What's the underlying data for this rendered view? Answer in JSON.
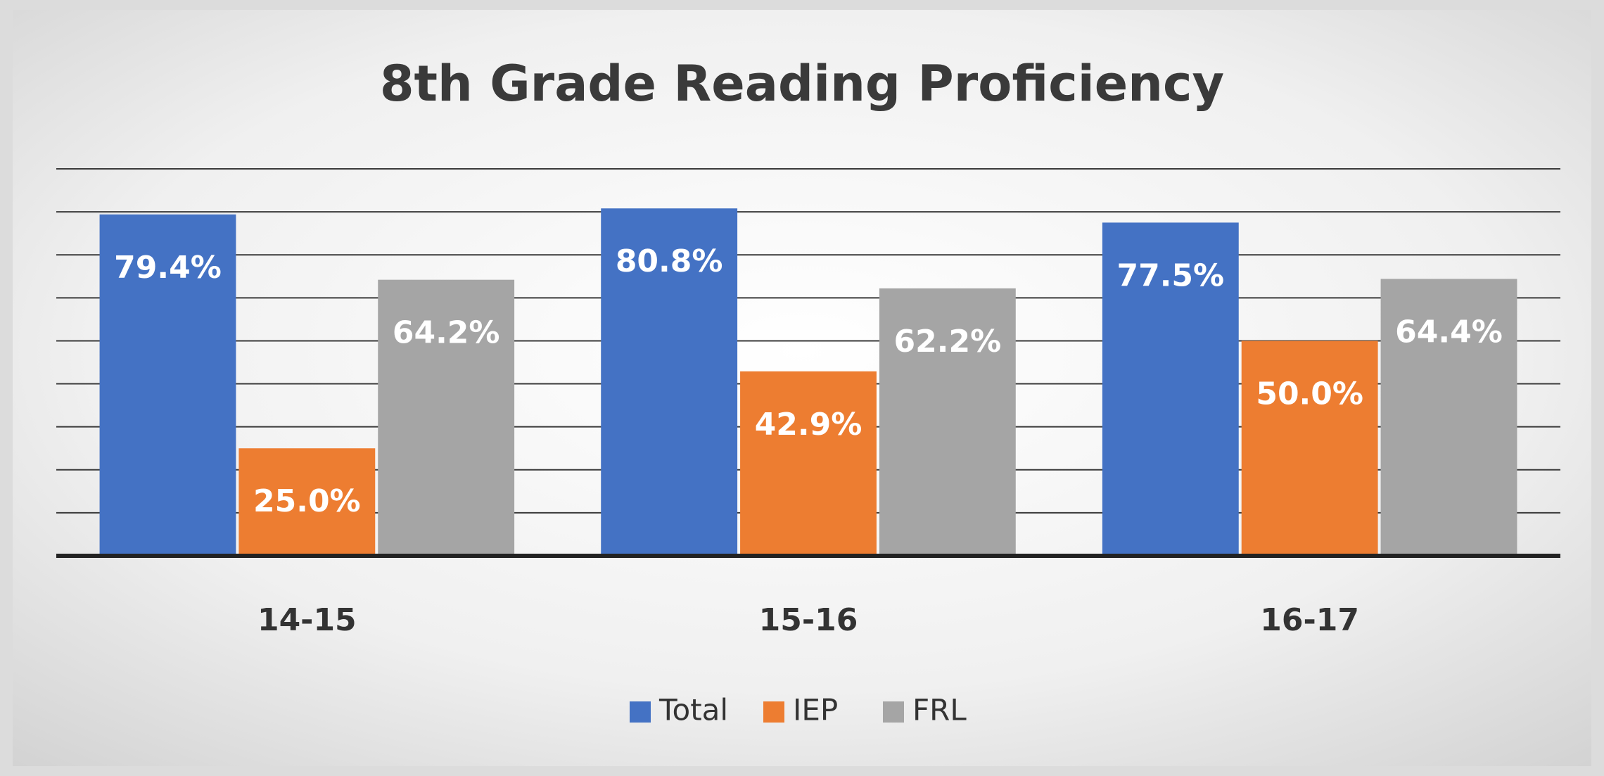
{
  "chart_data": {
    "type": "bar",
    "title": "8th Grade Reading Proficiency",
    "categories": [
      "14-15",
      "15-16",
      "16-17"
    ],
    "series": [
      {
        "name": "Total",
        "color": "#4472c4",
        "values": [
          79.4,
          80.8,
          77.5
        ],
        "value_labels": [
          "79.4%",
          "80.8%",
          "77.5%"
        ]
      },
      {
        "name": "IEP",
        "color": "#ed7d31",
        "values": [
          25.0,
          42.9,
          50.0
        ],
        "value_labels": [
          "25.0%",
          "42.9%",
          "50.0%"
        ]
      },
      {
        "name": "FRL",
        "color": "#a5a5a5",
        "values": [
          64.2,
          62.2,
          64.4
        ],
        "value_labels": [
          "64.2%",
          "62.2%",
          "64.4%"
        ]
      }
    ],
    "ylim": [
      0,
      90
    ],
    "yticks": [
      0,
      10,
      20,
      30,
      40,
      50,
      60,
      70,
      80,
      90
    ],
    "grid": true,
    "legend": "bottom"
  }
}
